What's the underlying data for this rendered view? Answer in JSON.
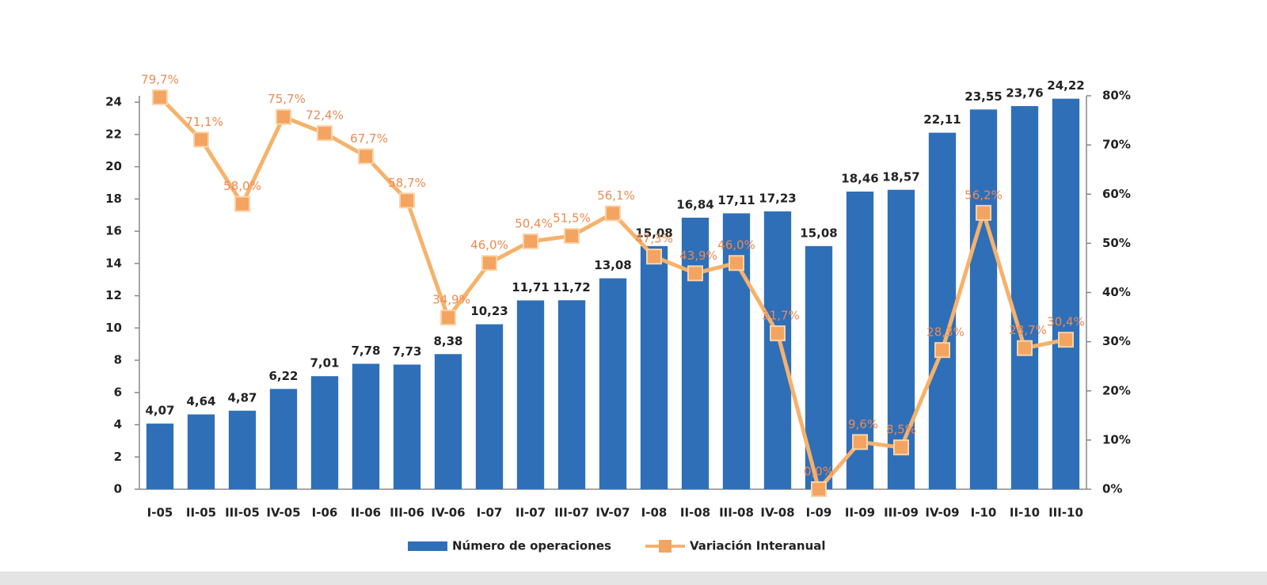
{
  "chart_data": {
    "type": "bar",
    "categories": [
      "I-05",
      "II-05",
      "III-05",
      "IV-05",
      "I-06",
      "II-06",
      "III-06",
      "IV-06",
      "I-07",
      "II-07",
      "III-07",
      "IV-07",
      "I-08",
      "II-08",
      "III-08",
      "IV-08",
      "I-09",
      "II-09",
      "III-09",
      "IV-09",
      "I-10",
      "II-10",
      "III-10"
    ],
    "series": [
      {
        "name": "Número de operaciones",
        "color": "#2f6fb8",
        "type": "bar",
        "axis": "y",
        "values": [
          4.07,
          4.64,
          4.87,
          6.22,
          7.01,
          7.78,
          7.73,
          8.38,
          10.23,
          11.71,
          11.72,
          13.08,
          15.08,
          16.84,
          17.11,
          17.23,
          15.08,
          18.46,
          18.57,
          22.11,
          23.55,
          23.76,
          24.22
        ],
        "value_labels": [
          "4,07",
          "4,64",
          "4,87",
          "6,22",
          "7,01",
          "7,78",
          "7,73",
          "8,38",
          "10,23",
          "11,71",
          "11,72",
          "13,08",
          "15,08",
          "16,84",
          "17,11",
          "17,23",
          "15,08",
          "18,46",
          "18,57",
          "22,11",
          "23,55",
          "23,76",
          "24,22"
        ]
      },
      {
        "name": "Variación Interanual",
        "color": "#f6b26b",
        "type": "line",
        "axis": "y2",
        "values": [
          79.7,
          71.1,
          58.0,
          75.7,
          72.4,
          67.7,
          58.7,
          34.9,
          46.0,
          50.4,
          51.5,
          56.1,
          47.3,
          43.9,
          46.0,
          31.7,
          0.0,
          9.6,
          8.5,
          28.3,
          56.2,
          28.7,
          30.4
        ],
        "value_labels": [
          "79,7%",
          "71,1%",
          "58,0%",
          "75,7%",
          "72,4%",
          "67,7%",
          "58,7%",
          "34,9%",
          "46,0%",
          "50,4%",
          "51,5%",
          "56,1%",
          "47,3%",
          "43,9%",
          "46,0%",
          "31,7%",
          "0,0%",
          "9,6%",
          "8,5%",
          "28,3%",
          "56,2%",
          "28,7%",
          "30,4%"
        ]
      }
    ],
    "ylim": [
      0,
      24.4
    ],
    "yticks": [
      0,
      2,
      4,
      6,
      8,
      10,
      12,
      14,
      16,
      18,
      20,
      22,
      24
    ],
    "y2lim": [
      0,
      80
    ],
    "y2ticks": [
      {
        "value": 0,
        "label": "0%"
      },
      {
        "value": 10,
        "label": "10%"
      },
      {
        "value": 20,
        "label": "20%"
      },
      {
        "value": 30,
        "label": "30%"
      },
      {
        "value": 40,
        "label": "40%"
      },
      {
        "value": 50,
        "label": "50%"
      },
      {
        "value": 60,
        "label": "60%"
      },
      {
        "value": 70,
        "label": "70%"
      },
      {
        "value": 80,
        "label": "80%"
      }
    ],
    "legend": "bottom"
  }
}
